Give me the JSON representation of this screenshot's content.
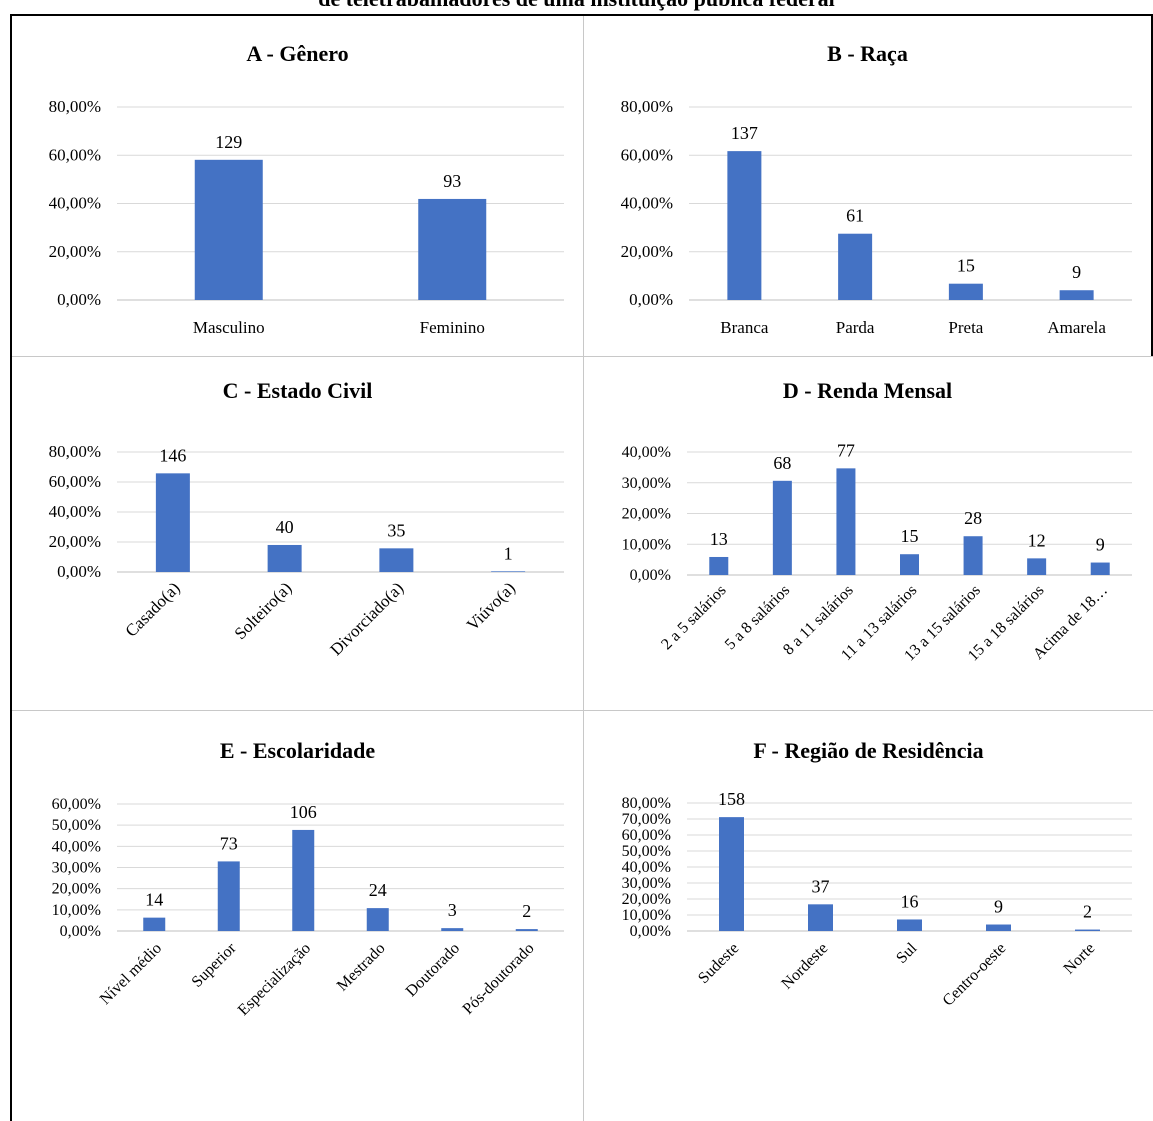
{
  "caption": "de teletrabalhadores de uma instituição pública federal",
  "colors": {
    "bar": "#4472C4",
    "grid": "#D9D9D9",
    "text": "#000000"
  },
  "chart_data": [
    {
      "id": "A",
      "type": "bar",
      "title": "A - Gênero",
      "categories": [
        "Masculino",
        "Feminino"
      ],
      "values": [
        58.11,
        41.89
      ],
      "labels": [
        "129",
        "93"
      ],
      "yticks": [
        "0,00%",
        "20,00%",
        "40,00%",
        "60,00%",
        "80,00%"
      ],
      "ylim": [
        0,
        80
      ],
      "xlabel": "",
      "ylabel": "",
      "grid": true,
      "rotate_labels": false
    },
    {
      "id": "B",
      "type": "bar",
      "title": "B - Raça",
      "categories": [
        "Branca",
        "Parda",
        "Preta",
        "Amarela"
      ],
      "values": [
        61.71,
        27.48,
        6.76,
        4.05
      ],
      "labels": [
        "137",
        "61",
        "15",
        "9"
      ],
      "yticks": [
        "0,00%",
        "20,00%",
        "40,00%",
        "60,00%",
        "80,00%"
      ],
      "ylim": [
        0,
        80
      ],
      "xlabel": "",
      "ylabel": "",
      "grid": true,
      "rotate_labels": false
    },
    {
      "id": "C",
      "type": "bar",
      "title": "C - Estado Civil",
      "categories": [
        "Casado(a)",
        "Solteiro(a)",
        "Divorciado(a)",
        "Viúvo(a)"
      ],
      "values": [
        65.77,
        18.02,
        15.77,
        0.45
      ],
      "labels": [
        "146",
        "40",
        "35",
        "1"
      ],
      "yticks": [
        "0,00%",
        "20,00%",
        "40,00%",
        "60,00%",
        "80,00%"
      ],
      "ylim": [
        0,
        80
      ],
      "xlabel": "",
      "ylabel": "",
      "grid": true,
      "rotate_labels": true
    },
    {
      "id": "D",
      "type": "bar",
      "title": "D - Renda Mensal",
      "categories": [
        "2 a 5 salários",
        "5 a 8 salários",
        "8 a 11 salários",
        "11 a 13 salários",
        "13 a 15 salários",
        "15 a 18 salários",
        "Acima de 18…"
      ],
      "values": [
        5.86,
        30.63,
        34.68,
        6.76,
        12.61,
        5.41,
        4.05
      ],
      "labels": [
        "13",
        "68",
        "77",
        "15",
        "28",
        "12",
        "9"
      ],
      "yticks": [
        "0,00%",
        "10,00%",
        "20,00%",
        "30,00%",
        "40,00%"
      ],
      "ylim": [
        0,
        40
      ],
      "xlabel": "",
      "ylabel": "",
      "grid": true,
      "rotate_labels": true
    },
    {
      "id": "E",
      "type": "bar",
      "title": "E - Escolaridade",
      "categories": [
        "Nível médio",
        "Superior",
        "Especialização",
        "Mestrado",
        "Doutorado",
        "Pós-doutorado"
      ],
      "values": [
        6.31,
        32.88,
        47.75,
        10.81,
        1.35,
        0.9
      ],
      "labels": [
        "14",
        "73",
        "106",
        "24",
        "3",
        "2"
      ],
      "yticks": [
        "0,00%",
        "10,00%",
        "20,00%",
        "30,00%",
        "40,00%",
        "50,00%",
        "60,00%"
      ],
      "ylim": [
        0,
        60
      ],
      "xlabel": "",
      "ylabel": "",
      "grid": true,
      "rotate_labels": true
    },
    {
      "id": "F",
      "type": "bar",
      "title": "F - Região de Residência",
      "categories": [
        "Sudeste",
        "Nordeste",
        "Sul",
        "Centro-oeste",
        "Norte"
      ],
      "values": [
        71.17,
        16.67,
        7.21,
        4.05,
        0.9
      ],
      "labels": [
        "158",
        "37",
        "16",
        "9",
        "2"
      ],
      "yticks": [
        "0,00%",
        "10,00%",
        "20,00%",
        "30,00%",
        "40,00%",
        "50,00%",
        "60,00%",
        "70,00%",
        "80,00%"
      ],
      "ylim": [
        0,
        80
      ],
      "xlabel": "",
      "ylabel": "",
      "grid": true,
      "rotate_labels": true
    }
  ]
}
